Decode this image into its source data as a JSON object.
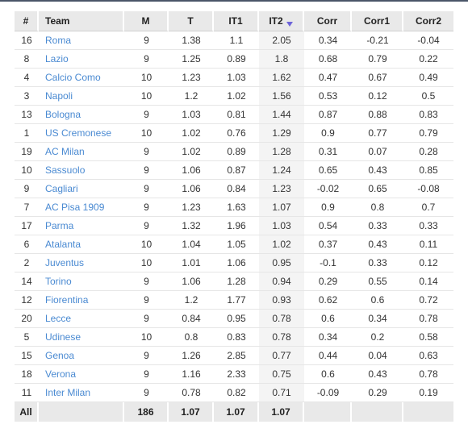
{
  "headers": [
    "#",
    "Team",
    "M",
    "T",
    "IT1",
    "IT2",
    "Corr",
    "Corr1",
    "Corr2"
  ],
  "rows": [
    {
      "rank": "16",
      "team": "Roma",
      "m": "9",
      "t": "1.38",
      "it1": "1.1",
      "it2": "2.05",
      "corr": "0.34",
      "corr1": "-0.21",
      "corr2": "-0.04"
    },
    {
      "rank": "8",
      "team": "Lazio",
      "m": "9",
      "t": "1.25",
      "it1": "0.89",
      "it2": "1.8",
      "corr": "0.68",
      "corr1": "0.79",
      "corr2": "0.22"
    },
    {
      "rank": "4",
      "team": "Calcio Como",
      "m": "10",
      "t": "1.23",
      "it1": "1.03",
      "it2": "1.62",
      "corr": "0.47",
      "corr1": "0.67",
      "corr2": "0.49"
    },
    {
      "rank": "3",
      "team": "Napoli",
      "m": "10",
      "t": "1.2",
      "it1": "1.02",
      "it2": "1.56",
      "corr": "0.53",
      "corr1": "0.12",
      "corr2": "0.5"
    },
    {
      "rank": "13",
      "team": "Bologna",
      "m": "9",
      "t": "1.03",
      "it1": "0.81",
      "it2": "1.44",
      "corr": "0.87",
      "corr1": "0.88",
      "corr2": "0.83"
    },
    {
      "rank": "1",
      "team": "US Cremonese",
      "m": "10",
      "t": "1.02",
      "it1": "0.76",
      "it2": "1.29",
      "corr": "0.9",
      "corr1": "0.77",
      "corr2": "0.79"
    },
    {
      "rank": "19",
      "team": "AC Milan",
      "m": "9",
      "t": "1.02",
      "it1": "0.89",
      "it2": "1.28",
      "corr": "0.31",
      "corr1": "0.07",
      "corr2": "0.28"
    },
    {
      "rank": "10",
      "team": "Sassuolo",
      "m": "9",
      "t": "1.06",
      "it1": "0.87",
      "it2": "1.24",
      "corr": "0.65",
      "corr1": "0.43",
      "corr2": "0.85"
    },
    {
      "rank": "9",
      "team": "Cagliari",
      "m": "9",
      "t": "1.06",
      "it1": "0.84",
      "it2": "1.23",
      "corr": "-0.02",
      "corr1": "0.65",
      "corr2": "-0.08"
    },
    {
      "rank": "7",
      "team": "AC Pisa 1909",
      "m": "9",
      "t": "1.23",
      "it1": "1.63",
      "it2": "1.07",
      "corr": "0.9",
      "corr1": "0.8",
      "corr2": "0.7"
    },
    {
      "rank": "17",
      "team": "Parma",
      "m": "9",
      "t": "1.32",
      "it1": "1.96",
      "it2": "1.03",
      "corr": "0.54",
      "corr1": "0.33",
      "corr2": "0.33"
    },
    {
      "rank": "6",
      "team": "Atalanta",
      "m": "10",
      "t": "1.04",
      "it1": "1.05",
      "it2": "1.02",
      "corr": "0.37",
      "corr1": "0.43",
      "corr2": "0.11"
    },
    {
      "rank": "2",
      "team": "Juventus",
      "m": "10",
      "t": "1.01",
      "it1": "1.06",
      "it2": "0.95",
      "corr": "-0.1",
      "corr1": "0.33",
      "corr2": "0.12"
    },
    {
      "rank": "14",
      "team": "Torino",
      "m": "9",
      "t": "1.06",
      "it1": "1.28",
      "it2": "0.94",
      "corr": "0.29",
      "corr1": "0.55",
      "corr2": "0.14"
    },
    {
      "rank": "12",
      "team": "Fiorentina",
      "m": "9",
      "t": "1.2",
      "it1": "1.77",
      "it2": "0.93",
      "corr": "0.62",
      "corr1": "0.6",
      "corr2": "0.72"
    },
    {
      "rank": "20",
      "team": "Lecce",
      "m": "9",
      "t": "0.84",
      "it1": "0.95",
      "it2": "0.78",
      "corr": "0.6",
      "corr1": "0.34",
      "corr2": "0.78"
    },
    {
      "rank": "5",
      "team": "Udinese",
      "m": "10",
      "t": "0.8",
      "it1": "0.83",
      "it2": "0.78",
      "corr": "0.34",
      "corr1": "0.2",
      "corr2": "0.58"
    },
    {
      "rank": "15",
      "team": "Genoa",
      "m": "9",
      "t": "1.26",
      "it1": "2.85",
      "it2": "0.77",
      "corr": "0.44",
      "corr1": "0.04",
      "corr2": "0.63"
    },
    {
      "rank": "18",
      "team": "Verona",
      "m": "9",
      "t": "1.16",
      "it1": "2.33",
      "it2": "0.75",
      "corr": "0.6",
      "corr1": "0.43",
      "corr2": "0.78"
    },
    {
      "rank": "11",
      "team": "Inter Milan",
      "m": "9",
      "t": "0.78",
      "it1": "0.82",
      "it2": "0.71",
      "corr": "-0.09",
      "corr1": "0.29",
      "corr2": "0.19"
    }
  ],
  "footer": {
    "label": "All",
    "m": "186",
    "t": "1.07",
    "it1": "1.07",
    "it2": "1.07"
  },
  "colors": {
    "link": "#4a8ad2",
    "header_bg": "#e9e9e9",
    "sort_arrow": "#6c63d9"
  },
  "icons": {
    "sort": "sort-descending-icon"
  }
}
